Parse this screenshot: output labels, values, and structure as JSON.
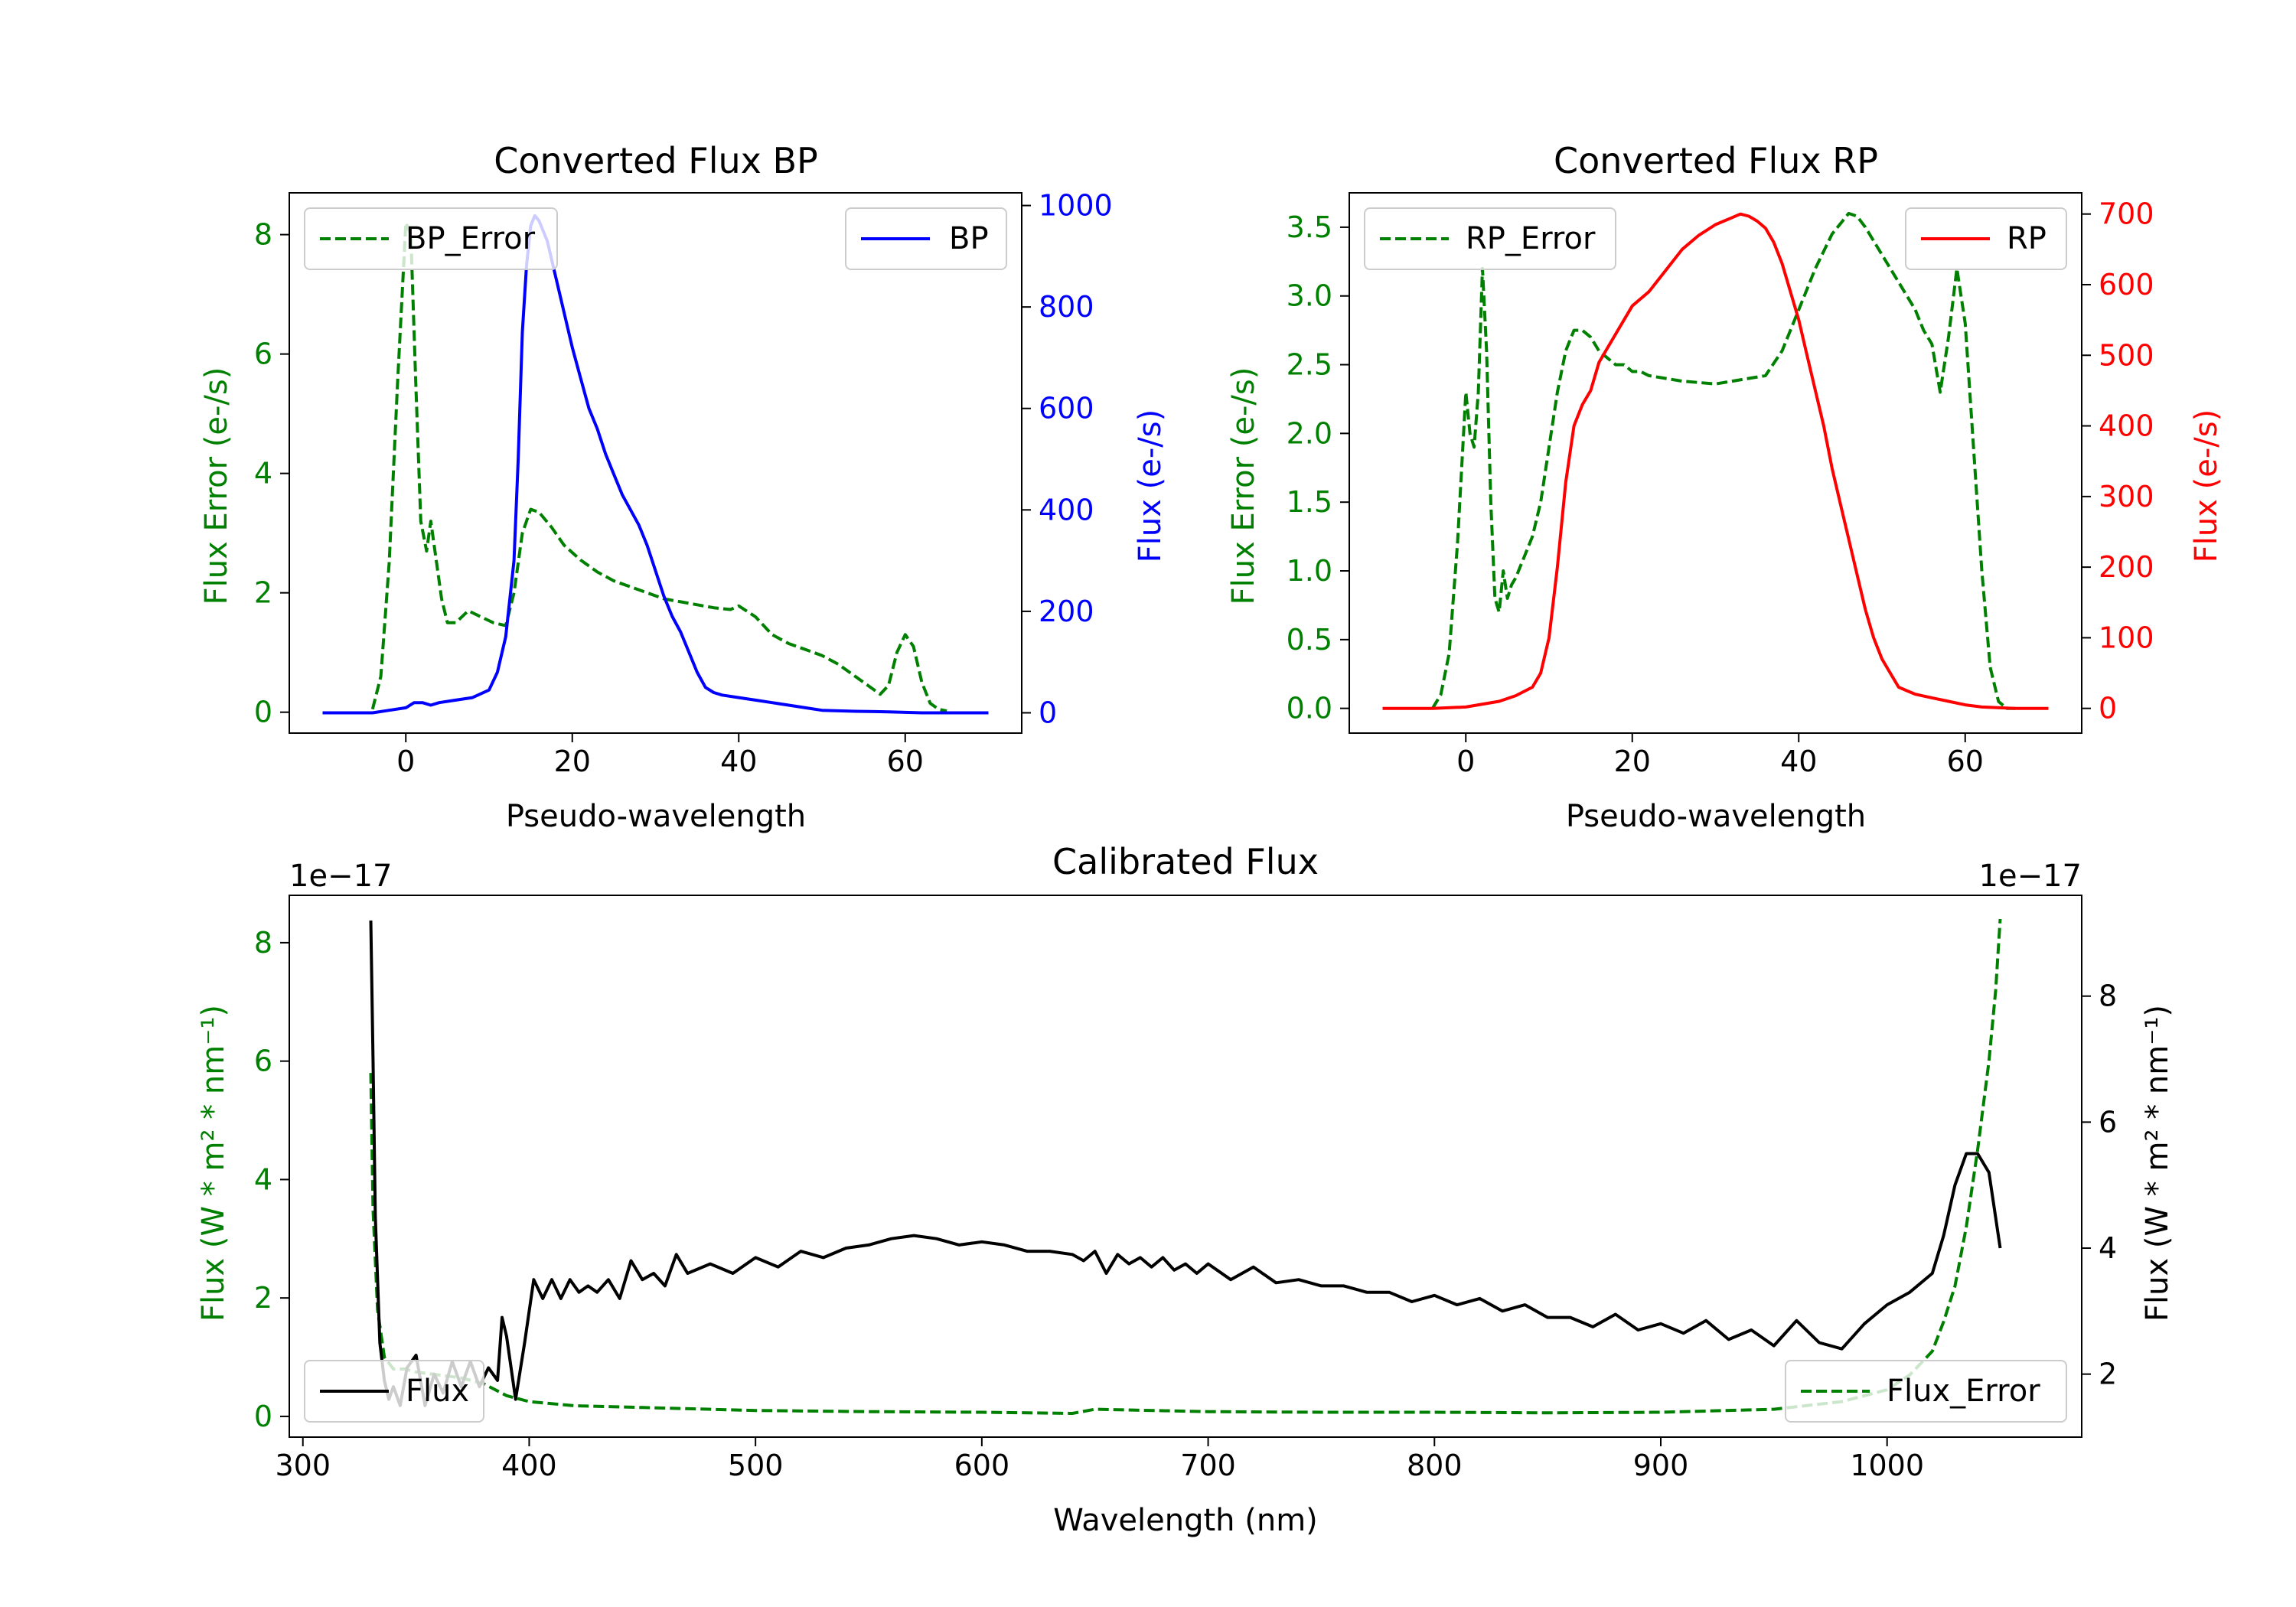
{
  "chart_data": [
    {
      "type": "line",
      "title": "Converted Flux BP",
      "xlabel": "Pseudo-wavelength",
      "ylabel_left": "Flux Error (e-/s)",
      "ylabel_right": "Flux (e-/s)",
      "xlim": [
        -14,
        74
      ],
      "ylim_left": [
        -0.35,
        8.7
      ],
      "ylim_right": [
        -40,
        1025
      ],
      "xticks": [
        0,
        20,
        40,
        60
      ],
      "yticks_left": [
        0,
        2,
        4,
        6,
        8
      ],
      "yticks_right": [
        0,
        200,
        400,
        600,
        800,
        1000
      ],
      "colors": {
        "error": "#008000",
        "flux": "#0000ff",
        "left_axis": "#008000",
        "right_axis": "#0000ff"
      },
      "series": [
        {
          "name": "BP_Error",
          "axis": "left",
          "style": "dashed",
          "x": [
            -4,
            -3,
            -2,
            -1,
            0,
            0.6,
            1.2,
            1.8,
            2.5,
            3,
            3.6,
            4.3,
            5,
            6,
            7.5,
            9,
            10.5,
            12,
            13,
            14,
            15,
            16,
            17.5,
            19,
            21,
            23,
            25,
            27,
            29,
            31,
            33,
            35,
            37,
            39,
            40,
            42,
            44,
            46,
            48,
            50,
            52,
            54,
            56,
            57,
            58,
            59,
            60,
            61,
            62,
            63,
            64,
            65
          ],
          "y": [
            0.05,
            0.6,
            2.5,
            5.5,
            8.2,
            8.0,
            5.5,
            3.2,
            2.7,
            3.2,
            2.6,
            1.9,
            1.5,
            1.5,
            1.7,
            1.6,
            1.5,
            1.45,
            2.0,
            3.0,
            3.4,
            3.35,
            3.1,
            2.8,
            2.55,
            2.35,
            2.2,
            2.1,
            2.0,
            1.9,
            1.85,
            1.8,
            1.75,
            1.72,
            1.78,
            1.6,
            1.3,
            1.15,
            1.05,
            0.95,
            0.8,
            0.6,
            0.4,
            0.3,
            0.45,
            1.0,
            1.3,
            1.1,
            0.5,
            0.15,
            0.05,
            0.02
          ]
        },
        {
          "name": "BP",
          "axis": "right",
          "style": "solid",
          "x": [
            -10,
            -6,
            -4,
            -2,
            0,
            1,
            2,
            3,
            4,
            6,
            8,
            10,
            11,
            12,
            13,
            13.5,
            14,
            14.5,
            15,
            15.5,
            16,
            17,
            18,
            19,
            20,
            21,
            22,
            23,
            24,
            25,
            26,
            27,
            28,
            29,
            30,
            31,
            32,
            33,
            34,
            35,
            36,
            37,
            38,
            40,
            42,
            44,
            46,
            48,
            50,
            54,
            58,
            62,
            66,
            70
          ],
          "y": [
            0,
            0,
            0,
            5,
            10,
            20,
            20,
            15,
            20,
            25,
            30,
            45,
            80,
            150,
            300,
            500,
            750,
            880,
            960,
            980,
            970,
            930,
            860,
            790,
            720,
            660,
            600,
            560,
            510,
            470,
            430,
            400,
            370,
            330,
            280,
            230,
            190,
            160,
            120,
            80,
            50,
            40,
            35,
            30,
            25,
            20,
            15,
            10,
            5,
            3,
            2,
            0,
            0,
            0
          ]
        }
      ],
      "legend": [
        {
          "label": "BP_Error",
          "placement": "upper-left"
        },
        {
          "label": "BP",
          "placement": "upper-right"
        }
      ]
    },
    {
      "type": "line",
      "title": "Converted Flux RP",
      "xlabel": "Pseudo-wavelength",
      "ylabel_left": "Flux Error (e-/s)",
      "ylabel_right": "Flux (e-/s)",
      "xlim": [
        -14,
        74
      ],
      "ylim_left": [
        -0.18,
        3.75
      ],
      "ylim_right": [
        -35,
        730
      ],
      "xticks": [
        0,
        20,
        40,
        60
      ],
      "yticks_left": [
        0.0,
        0.5,
        1.0,
        1.5,
        2.0,
        2.5,
        3.0,
        3.5
      ],
      "ytick_labels_left": [
        "0.0",
        "0.5",
        "1.0",
        "1.5",
        "2.0",
        "2.5",
        "3.0",
        "3.5"
      ],
      "yticks_right": [
        0,
        100,
        200,
        300,
        400,
        500,
        600,
        700
      ],
      "colors": {
        "error": "#008000",
        "flux": "#ff0000",
        "left_axis": "#008000",
        "right_axis": "#ff0000"
      },
      "series": [
        {
          "name": "RP_Error",
          "axis": "left",
          "style": "dashed",
          "x": [
            -4,
            -3,
            -2,
            -1,
            0,
            0.5,
            1,
            1.5,
            2,
            2.5,
            3,
            3.5,
            4,
            4.5,
            5,
            5.5,
            6,
            7,
            8,
            9,
            10,
            11,
            12,
            13,
            14,
            15,
            16,
            17,
            18,
            19,
            20,
            21,
            22,
            24,
            26,
            28,
            30,
            32,
            34,
            36,
            38,
            40,
            42,
            44,
            46,
            47,
            48,
            50,
            52,
            54,
            55,
            56,
            57,
            58,
            59,
            60,
            61,
            62,
            63,
            64,
            65,
            66
          ],
          "y": [
            0.0,
            0.1,
            0.4,
            1.2,
            2.3,
            2.0,
            1.9,
            2.3,
            3.2,
            2.6,
            1.5,
            0.8,
            0.7,
            1.0,
            0.8,
            0.9,
            0.95,
            1.1,
            1.25,
            1.5,
            1.9,
            2.3,
            2.6,
            2.75,
            2.75,
            2.7,
            2.6,
            2.55,
            2.5,
            2.5,
            2.45,
            2.45,
            2.42,
            2.4,
            2.38,
            2.37,
            2.36,
            2.38,
            2.4,
            2.42,
            2.6,
            2.9,
            3.2,
            3.45,
            3.6,
            3.58,
            3.5,
            3.3,
            3.1,
            2.9,
            2.75,
            2.65,
            2.3,
            2.7,
            3.2,
            2.8,
            1.9,
            1.0,
            0.3,
            0.05,
            0.0,
            0.0
          ]
        },
        {
          "name": "RP",
          "axis": "right",
          "style": "solid",
          "x": [
            -10,
            -4,
            0,
            4,
            6,
            8,
            9,
            10,
            11,
            12,
            13,
            14,
            15,
            16,
            18,
            20,
            22,
            24,
            26,
            28,
            30,
            32,
            33,
            34,
            35,
            36,
            37,
            38,
            39,
            40,
            41,
            42,
            43,
            44,
            45,
            46,
            47,
            48,
            49,
            50,
            51,
            52,
            53,
            54,
            56,
            58,
            60,
            62,
            66,
            70
          ],
          "y": [
            0,
            0,
            2,
            10,
            18,
            30,
            50,
            100,
            200,
            320,
            400,
            430,
            450,
            490,
            530,
            570,
            590,
            620,
            650,
            670,
            685,
            695,
            700,
            697,
            690,
            680,
            660,
            630,
            590,
            550,
            500,
            450,
            400,
            340,
            290,
            240,
            190,
            140,
            100,
            70,
            50,
            30,
            25,
            20,
            15,
            10,
            5,
            2,
            0,
            0
          ]
        }
      ],
      "legend": [
        {
          "label": "RP_Error",
          "placement": "upper-left"
        },
        {
          "label": "RP",
          "placement": "upper-right"
        }
      ]
    },
    {
      "type": "line",
      "title": "Calibrated Flux",
      "xlabel": "Wavelength (nm)",
      "ylabel_left": "Flux (W * m² * nm⁻¹)",
      "ylabel_right": "Flux (W * m² * nm⁻¹)",
      "offset_left": "1e−17",
      "offset_right": "1e−17",
      "xlim": [
        294,
        1086
      ],
      "ylim_left": [
        -0.35,
        8.8
      ],
      "ylim_right": [
        1.0,
        9.6
      ],
      "xticks": [
        300,
        400,
        500,
        600,
        700,
        800,
        900,
        1000
      ],
      "yticks_left": [
        0,
        2,
        4,
        6,
        8
      ],
      "yticks_right": [
        2,
        4,
        6,
        8
      ],
      "colors": {
        "error": "#008000",
        "flux": "#000000",
        "left_axis": "#008000",
        "right_axis": "#000000"
      },
      "series": [
        {
          "name": "Flux_Error",
          "axis": "left",
          "style": "dashed",
          "x": [
            330,
            331,
            333,
            336,
            340,
            345,
            350,
            360,
            370,
            380,
            390,
            400,
            420,
            450,
            500,
            550,
            600,
            640,
            650,
            700,
            750,
            800,
            850,
            900,
            950,
            980,
            1000,
            1010,
            1020,
            1025,
            1030,
            1035,
            1040,
            1045,
            1048,
            1050
          ],
          "y": [
            5.8,
            3.5,
            1.8,
            1.0,
            0.8,
            0.8,
            0.75,
            0.7,
            0.65,
            0.55,
            0.35,
            0.25,
            0.18,
            0.15,
            0.1,
            0.08,
            0.07,
            0.05,
            0.12,
            0.08,
            0.07,
            0.07,
            0.06,
            0.07,
            0.12,
            0.25,
            0.45,
            0.7,
            1.1,
            1.6,
            2.2,
            3.2,
            4.5,
            6.0,
            7.2,
            8.4
          ]
        },
        {
          "name": "Flux",
          "axis": "right",
          "style": "solid",
          "x": [
            330,
            331,
            332,
            334,
            336,
            338,
            340,
            343,
            346,
            350,
            354,
            358,
            362,
            366,
            370,
            374,
            378,
            382,
            386,
            388,
            390,
            394,
            398,
            402,
            406,
            410,
            414,
            418,
            422,
            426,
            430,
            435,
            440,
            445,
            450,
            455,
            460,
            465,
            470,
            480,
            490,
            500,
            510,
            520,
            530,
            540,
            550,
            560,
            570,
            580,
            590,
            600,
            610,
            620,
            630,
            640,
            645,
            650,
            655,
            660,
            665,
            670,
            675,
            680,
            685,
            690,
            695,
            700,
            710,
            720,
            730,
            740,
            750,
            760,
            770,
            780,
            790,
            800,
            810,
            820,
            830,
            840,
            850,
            860,
            870,
            880,
            890,
            900,
            910,
            920,
            930,
            940,
            950,
            960,
            970,
            980,
            990,
            1000,
            1010,
            1020,
            1025,
            1030,
            1035,
            1040,
            1045,
            1050
          ],
          "y": [
            9.2,
            7.0,
            4.5,
            2.5,
            1.9,
            1.6,
            1.8,
            1.5,
            2.1,
            2.3,
            1.5,
            2.0,
            1.7,
            2.2,
            1.8,
            2.2,
            1.8,
            2.1,
            1.9,
            2.9,
            2.6,
            1.6,
            2.5,
            3.5,
            3.2,
            3.5,
            3.2,
            3.5,
            3.3,
            3.4,
            3.3,
            3.5,
            3.2,
            3.8,
            3.5,
            3.6,
            3.4,
            3.9,
            3.6,
            3.75,
            3.6,
            3.85,
            3.7,
            3.95,
            3.85,
            4.0,
            4.05,
            4.15,
            4.2,
            4.15,
            4.05,
            4.1,
            4.05,
            3.95,
            3.95,
            3.9,
            3.8,
            3.95,
            3.6,
            3.9,
            3.75,
            3.85,
            3.7,
            3.85,
            3.65,
            3.75,
            3.6,
            3.75,
            3.5,
            3.7,
            3.45,
            3.5,
            3.4,
            3.4,
            3.3,
            3.3,
            3.15,
            3.25,
            3.1,
            3.2,
            3.0,
            3.1,
            2.9,
            2.9,
            2.75,
            2.95,
            2.7,
            2.8,
            2.65,
            2.85,
            2.55,
            2.7,
            2.45,
            2.85,
            2.5,
            2.4,
            2.8,
            3.1,
            3.3,
            3.6,
            4.2,
            5.0,
            5.5,
            5.5,
            5.2,
            4.0
          ]
        }
      ],
      "legend": [
        {
          "label": "Flux",
          "placement": "lower-left"
        },
        {
          "label": "Flux_Error",
          "placement": "lower-right"
        }
      ]
    }
  ]
}
